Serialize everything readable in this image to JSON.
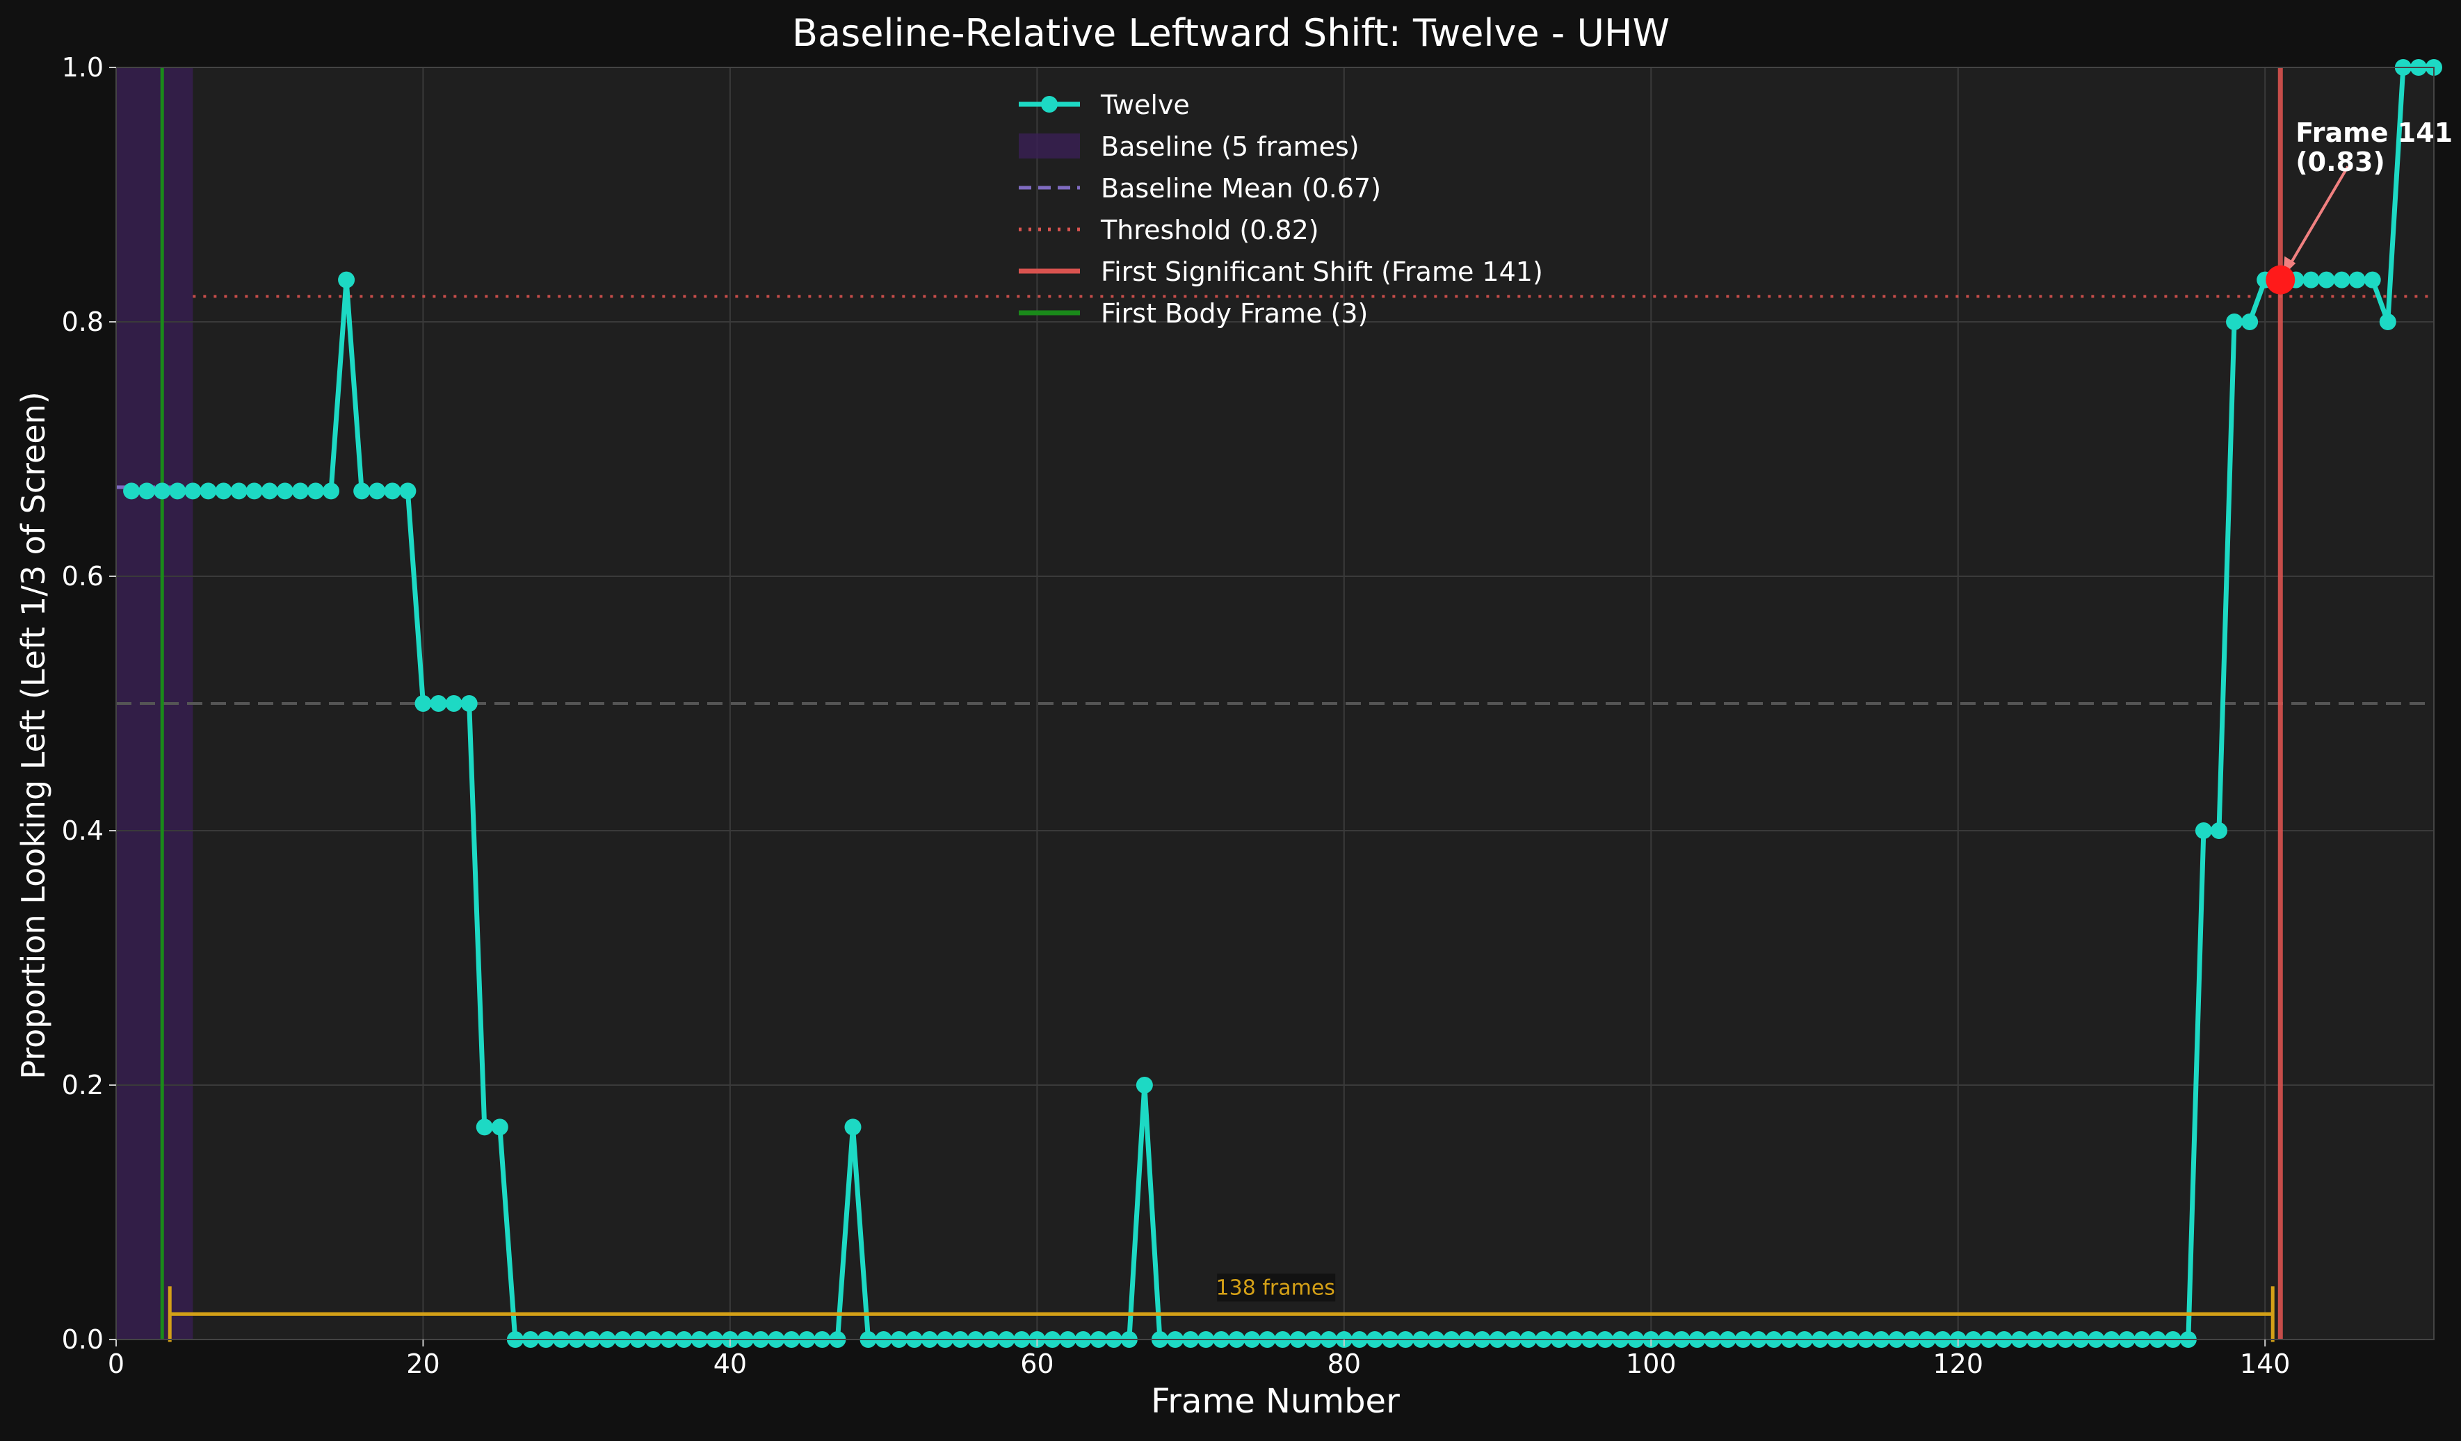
{
  "chart_data": {
    "type": "line",
    "title": "Baseline-Relative Leftward Shift: Twelve - UHW",
    "xlabel": "Frame Number",
    "ylabel": "Proportion Looking Left (Left 1/3 of Screen)",
    "xlim": [
      0,
      151
    ],
    "ylim": [
      0,
      1.0
    ],
    "x_ticks": [
      0,
      20,
      40,
      60,
      80,
      100,
      120,
      140
    ],
    "y_ticks": [
      0.0,
      0.2,
      0.4,
      0.6,
      0.8,
      1.0
    ],
    "x_tick_labels": [
      "0",
      "20",
      "40",
      "60",
      "80",
      "100",
      "120",
      "140"
    ],
    "y_tick_labels": [
      "0.0",
      "0.2",
      "0.4",
      "0.6",
      "0.8",
      "1.0"
    ],
    "grid": true,
    "legend_position": "top-center",
    "series": [
      {
        "name": "Twelve",
        "color": "#1dd9c4",
        "x": [
          1,
          2,
          3,
          4,
          5,
          6,
          7,
          8,
          9,
          10,
          11,
          12,
          13,
          14,
          15,
          16,
          17,
          18,
          19,
          20,
          21,
          22,
          23,
          24,
          25,
          26,
          27,
          28,
          29,
          30,
          31,
          32,
          33,
          34,
          35,
          36,
          37,
          38,
          39,
          40,
          41,
          42,
          43,
          44,
          45,
          46,
          47,
          48,
          49,
          50,
          51,
          52,
          53,
          54,
          55,
          56,
          57,
          58,
          59,
          60,
          61,
          62,
          63,
          64,
          65,
          66,
          67,
          68,
          69,
          70,
          71,
          72,
          73,
          74,
          75,
          76,
          77,
          78,
          79,
          80,
          81,
          82,
          83,
          84,
          85,
          86,
          87,
          88,
          89,
          90,
          91,
          92,
          93,
          94,
          95,
          96,
          97,
          98,
          99,
          100,
          101,
          102,
          103,
          104,
          105,
          106,
          107,
          108,
          109,
          110,
          111,
          112,
          113,
          114,
          115,
          116,
          117,
          118,
          119,
          120,
          121,
          122,
          123,
          124,
          125,
          126,
          127,
          128,
          129,
          130,
          131,
          132,
          133,
          134,
          135,
          136,
          137,
          138,
          139,
          140,
          141,
          142,
          143,
          144,
          145,
          146,
          147,
          148,
          149,
          150,
          151
        ],
        "y": [
          0.667,
          0.667,
          0.667,
          0.667,
          0.667,
          0.667,
          0.667,
          0.667,
          0.667,
          0.667,
          0.667,
          0.667,
          0.667,
          0.667,
          0.833,
          0.667,
          0.667,
          0.667,
          0.667,
          0.5,
          0.5,
          0.5,
          0.5,
          0.167,
          0.167,
          0,
          0,
          0,
          0,
          0,
          0,
          0,
          0,
          0,
          0,
          0,
          0,
          0,
          0,
          0,
          0,
          0,
          0,
          0,
          0,
          0,
          0,
          0.167,
          0,
          0,
          0,
          0,
          0,
          0,
          0,
          0,
          0,
          0,
          0,
          0,
          0,
          0,
          0,
          0,
          0,
          0,
          0.2,
          0,
          0,
          0,
          0,
          0,
          0,
          0,
          0,
          0,
          0,
          0,
          0,
          0,
          0,
          0,
          0,
          0,
          0,
          0,
          0,
          0,
          0,
          0,
          0,
          0,
          0,
          0,
          0,
          0,
          0,
          0,
          0,
          0,
          0,
          0,
          0,
          0,
          0,
          0,
          0,
          0,
          0,
          0,
          0,
          0,
          0,
          0,
          0,
          0,
          0,
          0,
          0,
          0,
          0,
          0,
          0,
          0,
          0,
          0,
          0,
          0,
          0,
          0,
          0,
          0,
          0,
          0,
          0,
          0.4,
          0.4,
          0.8,
          0.8,
          0.833,
          0.833,
          0.833,
          0.833,
          0.833,
          0.833,
          0.833,
          0.833,
          0.8,
          1.0,
          1.0,
          1.0
        ]
      }
    ],
    "baseline_region": {
      "x_start": 0,
      "x_end": 5,
      "color": "#3a1f55"
    },
    "baseline_mean": {
      "value": 0.67,
      "x_start": 0,
      "x_end": 5,
      "color": "#7f6bc0"
    },
    "threshold": {
      "value": 0.82,
      "x_start": 5,
      "x_end": 151,
      "color": "#d9534f"
    },
    "first_shift": {
      "frame": 141,
      "value": 0.833,
      "color": "#d9534f"
    },
    "first_body_frame": {
      "frame": 3,
      "color": "#1a8a1a"
    },
    "reference_line": {
      "value": 0.5,
      "color": "#555555"
    },
    "span": {
      "x_start": 3.5,
      "x_end": 140.5,
      "y": 0.02,
      "label": "138 frames",
      "color": "#d4a017"
    },
    "annotation": {
      "text_line1": "Frame 141",
      "text_line2": "(0.83)",
      "x": 141,
      "y": 0.833,
      "text_x": 142,
      "text_y": 0.96
    },
    "legend": [
      {
        "label": "Twelve",
        "style": "line-marker",
        "color": "#1dd9c4"
      },
      {
        "label": "Baseline (5 frames)",
        "style": "patch",
        "color": "#3a1f55"
      },
      {
        "label": "Baseline Mean (0.67)",
        "style": "dashed",
        "color": "#7f6bc0"
      },
      {
        "label": "Threshold (0.82)",
        "style": "dotted",
        "color": "#d9534f"
      },
      {
        "label": "First Significant Shift (Frame 141)",
        "style": "solid",
        "color": "#d9534f"
      },
      {
        "label": "First Body Frame (3)",
        "style": "solid",
        "color": "#1a8a1a"
      }
    ]
  }
}
